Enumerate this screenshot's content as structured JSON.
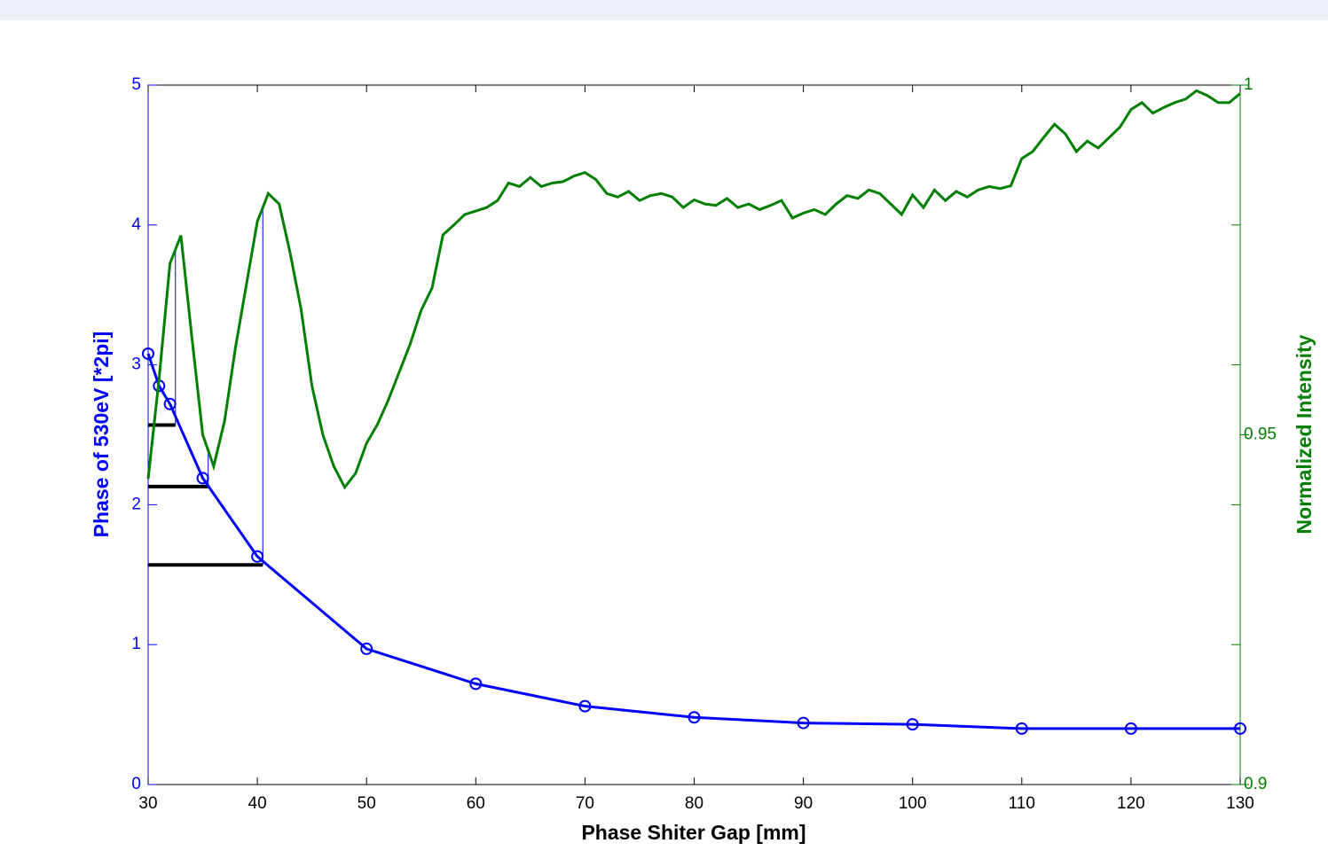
{
  "chart_data": {
    "type": "line",
    "xlabel": "Phase Shiter Gap [mm]",
    "ylabel": "Phase of 530eV [*2pi]",
    "y2label": "Normalized Intensity",
    "xlim": [
      30,
      130
    ],
    "xticks": [
      30,
      40,
      50,
      60,
      70,
      80,
      90,
      100,
      110,
      120,
      130
    ],
    "ylim": [
      0,
      5
    ],
    "yticks": [
      0,
      1,
      2,
      3,
      4,
      5
    ],
    "y2lim": [
      0.9,
      1
    ],
    "y2ticks": [
      0.9,
      0.95,
      1
    ],
    "series": [
      {
        "color": "#0000ff",
        "markers": true,
        "x": [
          30,
          31,
          32,
          35,
          40,
          50,
          60,
          70,
          80,
          90,
          100,
          110,
          120,
          130
        ],
        "values": [
          3.08,
          2.85,
          2.72,
          2.19,
          1.63,
          0.97,
          0.72,
          0.56,
          0.48,
          0.44,
          0.43,
          0.4,
          0.4,
          0.4
        ]
      },
      {
        "color": "#007f00",
        "axis": "y2",
        "x": [
          30,
          31,
          32,
          33,
          34,
          35,
          36,
          37,
          38,
          39,
          40,
          41,
          42,
          43,
          44,
          45,
          46,
          47,
          48,
          49,
          50,
          51,
          52,
          53,
          54,
          55,
          56,
          57,
          58,
          59,
          60,
          61,
          62,
          63,
          64,
          65,
          66,
          67,
          68,
          69,
          70,
          71,
          72,
          73,
          74,
          75,
          76,
          77,
          78,
          79,
          80,
          81,
          82,
          83,
          84,
          85,
          86,
          87,
          88,
          89,
          90,
          91,
          92,
          93,
          94,
          95,
          96,
          97,
          98,
          99,
          100,
          101,
          102,
          103,
          104,
          105,
          106,
          107,
          108,
          109,
          110,
          111,
          112,
          113,
          114,
          115,
          116,
          117,
          118,
          119,
          120,
          121,
          122,
          123,
          124,
          125,
          126,
          127,
          128,
          129,
          130
        ],
        "values": [
          0.9437,
          0.958,
          0.9745,
          0.9785,
          0.964,
          0.95,
          0.9455,
          0.952,
          0.9625,
          0.9715,
          0.9805,
          0.9845,
          0.983,
          0.976,
          0.968,
          0.957,
          0.95,
          0.9455,
          0.9425,
          0.9445,
          0.9488,
          0.9515,
          0.955,
          0.959,
          0.963,
          0.9678,
          0.971,
          0.9786,
          0.98,
          0.9815,
          0.982,
          0.9825,
          0.9835,
          0.986,
          0.9855,
          0.9868,
          0.9855,
          0.986,
          0.9862,
          0.987,
          0.9875,
          0.9865,
          0.9845,
          0.984,
          0.9848,
          0.9835,
          0.9842,
          0.9845,
          0.984,
          0.9825,
          0.9836,
          0.983,
          0.9828,
          0.9838,
          0.9825,
          0.983,
          0.9822,
          0.9828,
          0.9835,
          0.981,
          0.9817,
          0.9822,
          0.9815,
          0.983,
          0.9842,
          0.9838,
          0.985,
          0.9845,
          0.983,
          0.9815,
          0.9843,
          0.9825,
          0.985,
          0.9835,
          0.9848,
          0.984,
          0.985,
          0.9855,
          0.9852,
          0.9856,
          0.9895,
          0.9905,
          0.9925,
          0.9944,
          0.993,
          0.9905,
          0.992,
          0.991,
          0.9925,
          0.994,
          0.9965,
          0.9975,
          0.996,
          0.9968,
          0.9975,
          0.998,
          0.9992,
          0.9985,
          0.9975,
          0.9975,
          0.9988
        ]
      }
    ],
    "guides": {
      "color": "#000000",
      "x": [
        32.5,
        35.5,
        40.5
      ],
      "y": [
        2.57,
        2.13,
        1.57
      ]
    }
  }
}
